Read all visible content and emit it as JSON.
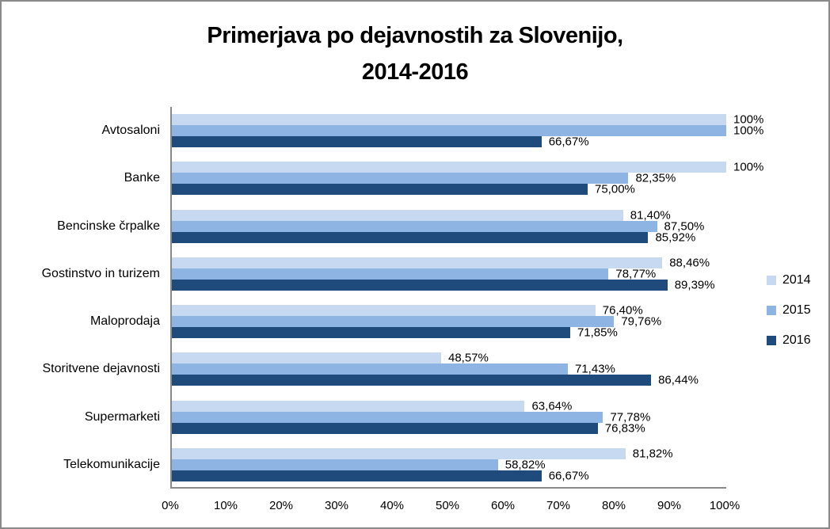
{
  "chart": {
    "title_line1": "Primerjava po dejavnostih za Slovenijo,",
    "title_line2": "2014-2016"
  },
  "chart_data": {
    "type": "bar",
    "orientation": "horizontal",
    "title": "Primerjava po dejavnostih za Slovenijo, 2014-2016",
    "grid": false,
    "categories": [
      "Avtosaloni",
      "Banke",
      "Bencinske črpalke",
      "Gostinstvo in turizem",
      "Maloprodaja",
      "Storitvene dejavnosti",
      "Supermarketi",
      "Telekomunikacije"
    ],
    "series": [
      {
        "name": "2014",
        "color": "#C6D9F0",
        "values": [
          100,
          100,
          81.4,
          88.46,
          76.4,
          48.57,
          63.64,
          81.82
        ],
        "labels": [
          "100%",
          "100%",
          "81,40%",
          "88,46%",
          "76,40%",
          "48,57%",
          "63,64%",
          "81,82%"
        ]
      },
      {
        "name": "2015",
        "color": "#8DB4E2",
        "values": [
          100,
          82.35,
          87.5,
          78.77,
          79.76,
          71.43,
          77.78,
          58.82
        ],
        "labels": [
          "100%",
          "82,35%",
          "87,50%",
          "78,77%",
          "79,76%",
          "71,43%",
          "77,78%",
          "58,82%"
        ]
      },
      {
        "name": "2016",
        "color": "#1F4A7C",
        "values": [
          66.67,
          75.0,
          85.92,
          89.39,
          71.85,
          86.44,
          76.83,
          66.67
        ],
        "labels": [
          "66,67%",
          "75,00%",
          "85,92%",
          "89,39%",
          "71,85%",
          "86,44%",
          "76,83%",
          "66,67%"
        ]
      }
    ],
    "x_axis": {
      "min": 0,
      "max": 100,
      "tick_step": 10,
      "ticks": [
        "0%",
        "10%",
        "20%",
        "30%",
        "40%",
        "50%",
        "60%",
        "70%",
        "80%",
        "90%",
        "100%"
      ]
    },
    "legend": {
      "position": "right",
      "entries": [
        "2014",
        "2015",
        "2016"
      ]
    }
  },
  "colors": {
    "axis_line": "#898989",
    "frame_border": "#8a8a8a",
    "background": "#ffffff",
    "text": "#000000"
  }
}
